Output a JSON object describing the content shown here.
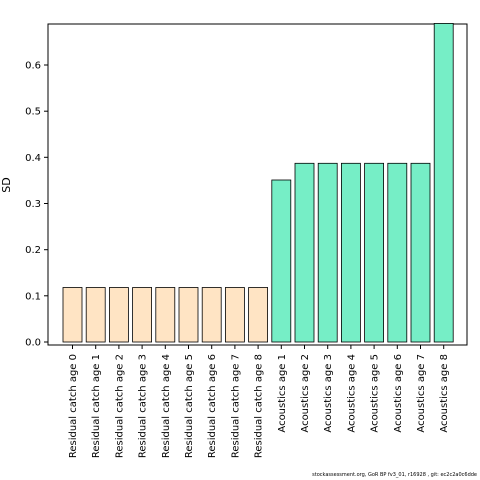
{
  "chart_data": {
    "type": "bar",
    "ylabel": "SD",
    "xlabel": "",
    "ylim": [
      0,
      0.69
    ],
    "yticks": [
      "0.0",
      "0.1",
      "0.2",
      "0.3",
      "0.4",
      "0.5",
      "0.6"
    ],
    "categories": [
      "Residual catch age 0",
      "Residual catch age 1",
      "Residual catch age 2",
      "Residual catch age 3",
      "Residual catch age 4",
      "Residual catch age 5",
      "Residual catch age 6",
      "Residual catch age 7",
      "Residual catch age 8",
      "Acoustics age 1",
      "Acoustics age 2",
      "Acoustics age 3",
      "Acoustics age 4",
      "Acoustics age 5",
      "Acoustics age 6",
      "Acoustics age 7",
      "Acoustics age 8"
    ],
    "values": [
      0.118,
      0.118,
      0.118,
      0.118,
      0.118,
      0.118,
      0.118,
      0.118,
      0.118,
      0.351,
      0.387,
      0.387,
      0.387,
      0.387,
      0.387,
      0.387,
      0.69
    ],
    "colors": [
      "#FFE4C4",
      "#FFE4C4",
      "#FFE4C4",
      "#FFE4C4",
      "#FFE4C4",
      "#FFE4C4",
      "#FFE4C4",
      "#FFE4C4",
      "#FFE4C4",
      "#76EEC6",
      "#76EEC6",
      "#76EEC6",
      "#76EEC6",
      "#76EEC6",
      "#76EEC6",
      "#76EEC6",
      "#76EEC6"
    ],
    "grid": false
  },
  "footer": "stockassessment.org, GoR BP fv3_01, r16928 , git: ec2c2a0c6dde"
}
